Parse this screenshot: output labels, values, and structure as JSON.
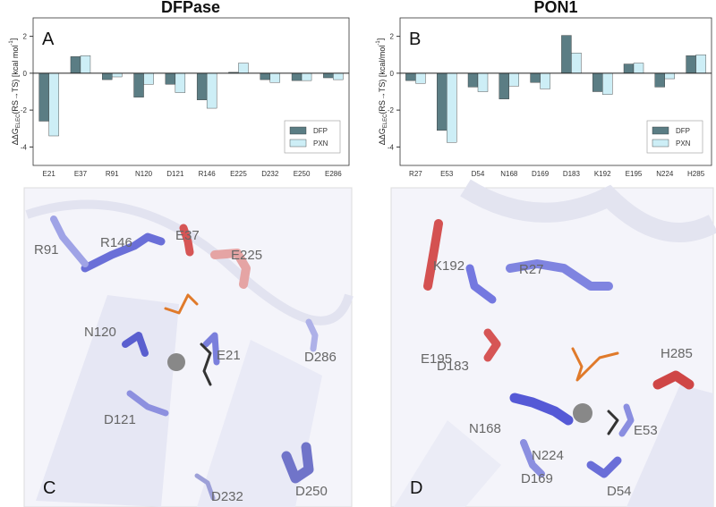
{
  "chart_data": [
    {
      "type": "bar",
      "title": "DFPase",
      "panel": "A",
      "ylabel": [
        "ΔΔG",
        "ELEC",
        "(RS→TS) [kcal mol",
        "-1",
        "]"
      ],
      "categories": [
        "E21",
        "E37",
        "R91",
        "N120",
        "D121",
        "R146",
        "E225",
        "D232",
        "E250",
        "E286"
      ],
      "series": [
        {
          "name": "DFP",
          "color": "#5b7d84",
          "values": [
            -2.6,
            0.9,
            -0.35,
            -1.3,
            -0.6,
            -1.45,
            0.05,
            -0.35,
            -0.4,
            -0.25
          ]
        },
        {
          "name": "PXN",
          "color": "#cdeef6",
          "values": [
            -3.4,
            0.95,
            -0.2,
            -0.6,
            -1.05,
            -1.9,
            0.55,
            -0.5,
            -0.4,
            -0.35
          ]
        }
      ],
      "ylim": [
        -5,
        3
      ],
      "yticks": [
        -4,
        -2,
        0,
        2
      ],
      "legend": "lower right"
    },
    {
      "type": "bar",
      "title": "PON1",
      "panel": "B",
      "ylabel": [
        "ΔΔG",
        "ELEC",
        "(RS→TS) [kcal/mol",
        "-1",
        "]"
      ],
      "categories": [
        "R27",
        "E53",
        "D54",
        "N168",
        "D169",
        "D183",
        "K192",
        "E195",
        "N224",
        "H285"
      ],
      "series": [
        {
          "name": "DFP",
          "color": "#5b7d84",
          "values": [
            -0.4,
            -3.1,
            -0.75,
            -1.4,
            -0.5,
            2.05,
            -1.0,
            0.5,
            -0.75,
            0.95
          ]
        },
        {
          "name": "PXN",
          "color": "#cdeef6",
          "values": [
            -0.55,
            -3.75,
            -1.0,
            -0.7,
            -0.85,
            1.1,
            -1.15,
            0.55,
            -0.3,
            1.0
          ]
        }
      ],
      "ylim": [
        -5,
        3
      ],
      "yticks": [
        -4,
        -2,
        0,
        2
      ],
      "legend": "lower right"
    }
  ],
  "structures": [
    {
      "panel": "C",
      "labels": [
        "R146",
        "E37",
        "E225",
        "R91",
        "N120",
        "E21",
        "D286",
        "D121",
        "D232",
        "D250"
      ]
    },
    {
      "panel": "D",
      "labels": [
        "R27",
        "K192",
        "E195",
        "D183",
        "H285",
        "N168",
        "N224",
        "E53",
        "D169",
        "D54"
      ]
    }
  ]
}
